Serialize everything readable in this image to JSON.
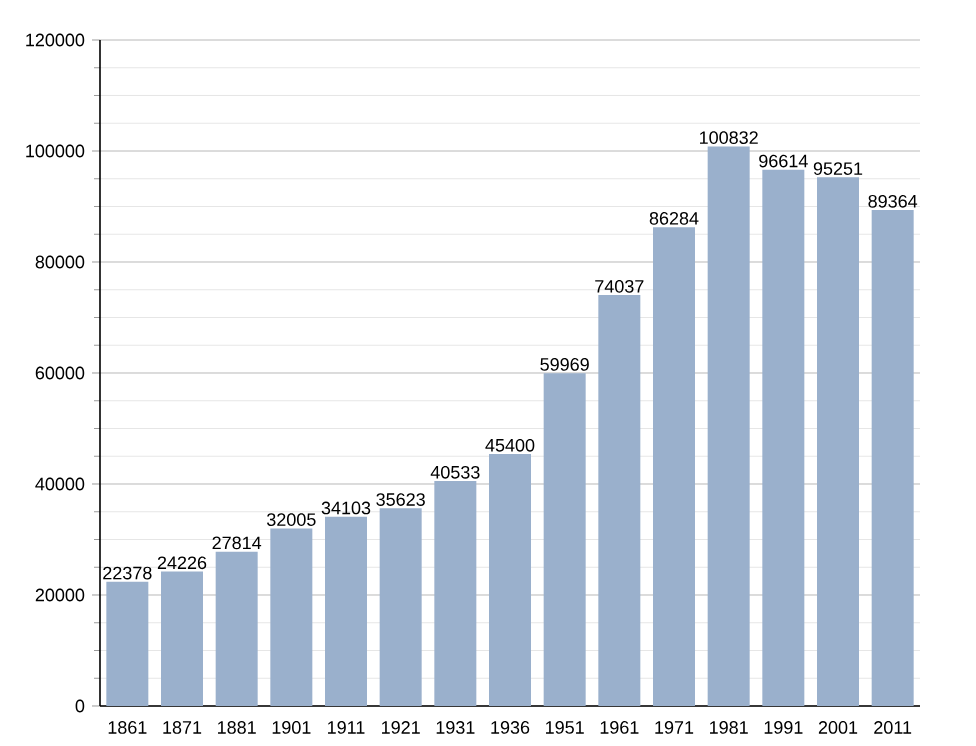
{
  "chart_data": {
    "type": "bar",
    "categories": [
      "1861",
      "1871",
      "1881",
      "1901",
      "1911",
      "1921",
      "1931",
      "1936",
      "1951",
      "1961",
      "1971",
      "1981",
      "1991",
      "2001",
      "2011"
    ],
    "values": [
      22378,
      24226,
      27814,
      32005,
      34103,
      35623,
      40533,
      45400,
      59969,
      74037,
      86284,
      100832,
      96614,
      95251,
      89364
    ],
    "color": "#9ab0cc",
    "ylim": [
      0,
      120000
    ],
    "yticks": [
      0,
      {
        "value": 5000,
        "label": null
      },
      {
        "value": 10000,
        "label": null
      },
      {
        "value": 15000,
        "label": null
      },
      20000,
      {
        "value": 25000,
        "label": null
      },
      {
        "value": 30000,
        "label": null
      },
      {
        "value": 35000,
        "label": null
      },
      40000,
      {
        "value": 45000,
        "label": null
      },
      {
        "value": 50000,
        "label": null
      },
      {
        "value": 55000,
        "label": null
      },
      60000,
      {
        "value": 65000,
        "label": null
      },
      {
        "value": 70000,
        "label": null
      },
      {
        "value": 75000,
        "label": null
      },
      80000,
      {
        "value": 85000,
        "label": null
      },
      {
        "value": 90000,
        "label": null
      },
      {
        "value": 95000,
        "label": null
      },
      100000,
      {
        "value": 105000,
        "label": null
      },
      {
        "value": 110000,
        "label": null
      },
      {
        "value": 115000,
        "label": null
      },
      120000
    ],
    "grid": "y",
    "data_labels": true
  }
}
